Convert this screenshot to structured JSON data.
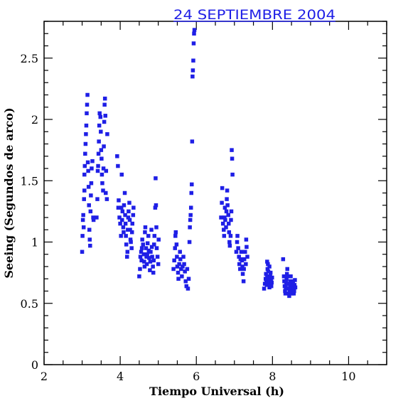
{
  "chart_data": {
    "type": "scatter",
    "title": "24 SEPTIEMBRE 2004",
    "xlabel": "Tiempo Universal (h)",
    "ylabel": "Seeing (Segundos de arco)",
    "xlim": [
      2,
      11
    ],
    "ylim": [
      0,
      2.8
    ],
    "xticks": [
      2,
      4,
      6,
      8,
      10
    ],
    "yticks": [
      0,
      0.5,
      1,
      1.5,
      2,
      2.5
    ],
    "grid": false,
    "colors": {
      "points": "#1f1fe6",
      "title": "#1f1fe6",
      "axes": "#000000"
    },
    "series": [
      {
        "values": [
          [
            3.0,
            0.92
          ],
          [
            3.01,
            1.05
          ],
          [
            3.02,
            1.18
          ],
          [
            3.03,
            1.22
          ],
          [
            3.04,
            1.12
          ],
          [
            3.05,
            1.35
          ],
          [
            3.06,
            1.42
          ],
          [
            3.06,
            1.55
          ],
          [
            3.07,
            1.62
          ],
          [
            3.08,
            1.72
          ],
          [
            3.09,
            1.8
          ],
          [
            3.1,
            1.88
          ],
          [
            3.11,
            1.95
          ],
          [
            3.12,
            2.05
          ],
          [
            3.13,
            2.12
          ],
          [
            3.14,
            2.2
          ],
          [
            3.15,
            1.65
          ],
          [
            3.16,
            1.58
          ],
          [
            3.17,
            1.45
          ],
          [
            3.18,
            1.3
          ],
          [
            3.19,
            1.1
          ],
          [
            3.2,
            1.02
          ],
          [
            3.21,
            0.97
          ],
          [
            3.22,
            1.25
          ],
          [
            3.23,
            1.38
          ],
          [
            3.24,
            1.48
          ],
          [
            3.25,
            1.6
          ],
          [
            3.27,
            1.66
          ],
          [
            3.29,
            1.2
          ],
          [
            3.3,
            1.18
          ],
          [
            3.38,
            1.2
          ],
          [
            3.4,
            1.35
          ],
          [
            3.41,
            1.58
          ],
          [
            3.42,
            1.62
          ],
          [
            3.43,
            1.72
          ],
          [
            3.44,
            1.82
          ],
          [
            3.45,
            1.95
          ],
          [
            3.46,
            2.05
          ],
          [
            3.48,
            2.02
          ],
          [
            3.49,
            1.9
          ],
          [
            3.5,
            1.75
          ],
          [
            3.51,
            1.68
          ],
          [
            3.52,
            1.55
          ],
          [
            3.53,
            1.48
          ],
          [
            3.55,
            1.42
          ],
          [
            3.56,
            1.6
          ],
          [
            3.57,
            1.78
          ],
          [
            3.58,
            1.98
          ],
          [
            3.59,
            2.12
          ],
          [
            3.6,
            2.17
          ],
          [
            3.61,
            2.03
          ],
          [
            3.62,
            1.4
          ],
          [
            3.63,
            1.58
          ],
          [
            3.65,
            1.35
          ],
          [
            3.66,
            1.88
          ],
          [
            3.92,
            1.7
          ],
          [
            3.94,
            1.62
          ],
          [
            3.95,
            1.28
          ],
          [
            3.96,
            1.34
          ],
          [
            3.98,
            1.2
          ],
          [
            4.0,
            1.15
          ],
          [
            4.02,
            1.05
          ],
          [
            4.03,
            1.28
          ],
          [
            4.04,
            1.55
          ],
          [
            4.05,
            1.18
          ],
          [
            4.06,
            1.25
          ],
          [
            4.08,
            1.12
          ],
          [
            4.09,
            1.08
          ],
          [
            4.1,
            1.3
          ],
          [
            4.12,
            1.4
          ],
          [
            4.13,
            1.22
          ],
          [
            4.14,
            1.15
          ],
          [
            4.15,
            1.05
          ],
          [
            4.16,
            0.98
          ],
          [
            4.18,
            0.88
          ],
          [
            4.19,
            0.92
          ],
          [
            4.2,
            1.1
          ],
          [
            4.21,
            1.2
          ],
          [
            4.22,
            1.25
          ],
          [
            4.24,
            1.32
          ],
          [
            4.25,
            1.18
          ],
          [
            4.26,
            1.1
          ],
          [
            4.27,
            1.02
          ],
          [
            4.28,
            1.0
          ],
          [
            4.3,
            0.95
          ],
          [
            4.31,
            1.08
          ],
          [
            4.32,
            1.15
          ],
          [
            4.34,
            1.22
          ],
          [
            4.35,
            1.28
          ],
          [
            4.5,
            0.72
          ],
          [
            4.52,
            0.78
          ],
          [
            4.53,
            0.88
          ],
          [
            4.55,
            0.92
          ],
          [
            4.56,
            0.85
          ],
          [
            4.57,
            0.95
          ],
          [
            4.58,
            1.02
          ],
          [
            4.6,
            0.98
          ],
          [
            4.62,
            0.9
          ],
          [
            4.63,
            0.84
          ],
          [
            4.64,
            0.8
          ],
          [
            4.65,
            1.08
          ],
          [
            4.66,
            1.12
          ],
          [
            4.68,
            0.95
          ],
          [
            4.69,
            0.88
          ],
          [
            4.7,
            0.82
          ],
          [
            4.71,
            0.9
          ],
          [
            4.72,
            0.99
          ],
          [
            4.74,
            1.05
          ],
          [
            4.75,
            0.93
          ],
          [
            4.76,
            0.87
          ],
          [
            4.78,
            0.77
          ],
          [
            4.79,
            0.84
          ],
          [
            4.8,
            0.92
          ],
          [
            4.82,
            1.1
          ],
          [
            4.83,
            0.96
          ],
          [
            4.84,
            0.88
          ],
          [
            4.86,
            0.8
          ],
          [
            4.87,
            0.75
          ],
          [
            4.88,
            0.85
          ],
          [
            4.89,
            0.98
          ],
          [
            4.9,
            1.05
          ],
          [
            4.92,
            1.28
          ],
          [
            4.93,
            1.52
          ],
          [
            4.94,
            1.3
          ],
          [
            4.95,
            1.12
          ],
          [
            4.96,
            0.95
          ],
          [
            4.98,
            0.88
          ],
          [
            5.0,
            0.82
          ],
          [
            5.01,
            1.02
          ],
          [
            5.4,
            0.78
          ],
          [
            5.42,
            0.85
          ],
          [
            5.44,
            0.95
          ],
          [
            5.45,
            1.05
          ],
          [
            5.46,
            1.08
          ],
          [
            5.48,
            0.98
          ],
          [
            5.49,
            0.88
          ],
          [
            5.5,
            0.8
          ],
          [
            5.52,
            0.75
          ],
          [
            5.53,
            0.7
          ],
          [
            5.55,
            0.82
          ],
          [
            5.57,
            0.92
          ],
          [
            5.58,
            0.86
          ],
          [
            5.6,
            0.78
          ],
          [
            5.62,
            0.72
          ],
          [
            5.64,
            0.8
          ],
          [
            5.66,
            0.88
          ],
          [
            5.68,
            0.82
          ],
          [
            5.7,
            0.76
          ],
          [
            5.72,
            0.68
          ],
          [
            5.74,
            0.64
          ],
          [
            5.76,
            0.78
          ],
          [
            5.78,
            0.62
          ],
          [
            5.8,
            0.7
          ],
          [
            5.82,
            1.0
          ],
          [
            5.83,
            1.12
          ],
          [
            5.84,
            1.18
          ],
          [
            5.85,
            1.22
          ],
          [
            5.86,
            1.28
          ],
          [
            5.87,
            1.4
          ],
          [
            5.88,
            1.47
          ],
          [
            5.89,
            1.82
          ],
          [
            5.9,
            2.35
          ],
          [
            5.91,
            2.4
          ],
          [
            5.92,
            2.48
          ],
          [
            5.93,
            2.62
          ],
          [
            5.94,
            2.7
          ],
          [
            5.95,
            2.73
          ],
          [
            6.65,
            1.2
          ],
          [
            6.67,
            1.32
          ],
          [
            6.68,
            1.44
          ],
          [
            6.7,
            1.15
          ],
          [
            6.72,
            1.1
          ],
          [
            6.73,
            1.05
          ],
          [
            6.74,
            1.2
          ],
          [
            6.75,
            1.28
          ],
          [
            6.76,
            1.18
          ],
          [
            6.78,
            1.12
          ],
          [
            6.79,
            1.25
          ],
          [
            6.8,
            1.35
          ],
          [
            6.81,
            1.42
          ],
          [
            6.82,
            1.3
          ],
          [
            6.84,
            1.22
          ],
          [
            6.85,
            1.15
          ],
          [
            6.86,
            1.08
          ],
          [
            6.87,
            1.0
          ],
          [
            6.88,
            0.97
          ],
          [
            6.9,
            1.05
          ],
          [
            6.91,
            1.18
          ],
          [
            6.92,
            1.25
          ],
          [
            6.93,
            1.75
          ],
          [
            6.94,
            1.68
          ],
          [
            6.95,
            1.55
          ],
          [
            7.05,
            0.92
          ],
          [
            7.07,
            1.0
          ],
          [
            7.08,
            1.05
          ],
          [
            7.1,
            0.95
          ],
          [
            7.12,
            0.88
          ],
          [
            7.13,
            0.82
          ],
          [
            7.15,
            0.78
          ],
          [
            7.16,
            0.86
          ],
          [
            7.18,
            0.92
          ],
          [
            7.2,
            0.85
          ],
          [
            7.21,
            0.8
          ],
          [
            7.22,
            0.74
          ],
          [
            7.24,
            0.68
          ],
          [
            7.25,
            0.78
          ],
          [
            7.26,
            0.86
          ],
          [
            7.28,
            0.92
          ],
          [
            7.3,
            0.82
          ],
          [
            7.31,
            1.02
          ],
          [
            7.32,
            0.96
          ],
          [
            7.34,
            0.88
          ],
          [
            7.78,
            0.62
          ],
          [
            7.8,
            0.66
          ],
          [
            7.82,
            0.7
          ],
          [
            7.83,
            0.74
          ],
          [
            7.84,
            0.68
          ],
          [
            7.85,
            0.65
          ],
          [
            7.86,
            0.72
          ],
          [
            7.87,
            0.78
          ],
          [
            7.88,
            0.82
          ],
          [
            7.89,
            0.76
          ],
          [
            7.9,
            0.7
          ],
          [
            7.91,
            0.66
          ],
          [
            7.92,
            0.63
          ],
          [
            7.93,
            0.68
          ],
          [
            7.94,
            0.72
          ],
          [
            7.95,
            0.75
          ],
          [
            7.96,
            0.69
          ],
          [
            7.97,
            0.64
          ],
          [
            7.98,
            0.67
          ],
          [
            7.99,
            0.71
          ],
          [
            7.86,
            0.84
          ],
          [
            7.92,
            0.8
          ],
          [
            8.28,
            0.86
          ],
          [
            8.3,
            0.72
          ],
          [
            8.31,
            0.68
          ],
          [
            8.32,
            0.64
          ],
          [
            8.33,
            0.6
          ],
          [
            8.34,
            0.58
          ],
          [
            8.35,
            0.63
          ],
          [
            8.36,
            0.67
          ],
          [
            8.37,
            0.7
          ],
          [
            8.38,
            0.74
          ],
          [
            8.39,
            0.78
          ],
          [
            8.4,
            0.72
          ],
          [
            8.41,
            0.66
          ],
          [
            8.42,
            0.62
          ],
          [
            8.43,
            0.58
          ],
          [
            8.44,
            0.56
          ],
          [
            8.45,
            0.6
          ],
          [
            8.46,
            0.64
          ],
          [
            8.47,
            0.68
          ],
          [
            8.48,
            0.72
          ],
          [
            8.49,
            0.66
          ],
          [
            8.5,
            0.62
          ],
          [
            8.51,
            0.58
          ],
          [
            8.52,
            0.6
          ],
          [
            8.53,
            0.64
          ],
          [
            8.54,
            0.68
          ],
          [
            8.55,
            0.62
          ],
          [
            8.56,
            0.58
          ],
          [
            8.57,
            0.6
          ],
          [
            8.58,
            0.65
          ],
          [
            8.59,
            0.69
          ],
          [
            8.6,
            0.63
          ]
        ]
      }
    ]
  }
}
